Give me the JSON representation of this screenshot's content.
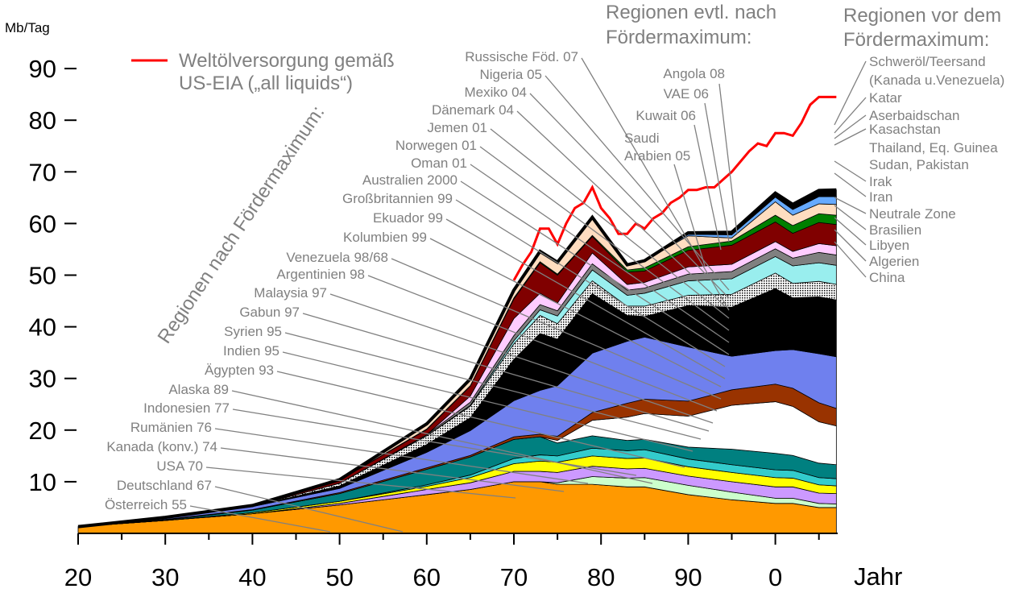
{
  "chart_data": {
    "type": "area",
    "title": "",
    "ylabel": "Mb/Tag",
    "xlabel": "Jahr",
    "ylim": [
      0,
      90
    ],
    "xlim": [
      1920,
      2007
    ],
    "y_ticks": [
      "10",
      "20",
      "30",
      "40",
      "50",
      "60",
      "70",
      "80",
      "90"
    ],
    "x_ticks": [
      "20",
      "30",
      "40",
      "50",
      "60",
      "70",
      "80",
      "90",
      "0"
    ],
    "grid": false,
    "legend": {
      "label_line1": "Weltölversorgung gemäß",
      "label_line2": "US-EIA („all liquids“)",
      "color": "#ff0000",
      "placement": "top-left"
    },
    "headers": {
      "left_rotated": "Regionen nach Fördermaximum:",
      "middle_line1": "Regionen evtl. nach",
      "middle_line2": "Fördermaximum:",
      "right_line1": "Regionen vor dem",
      "right_line2": "Fördermaximum:"
    },
    "years": [
      1920,
      1930,
      1940,
      1950,
      1960,
      1965,
      1970,
      1973,
      1975,
      1979,
      1983,
      1985,
      1990,
      1995,
      2000,
      2002,
      2005,
      2007
    ],
    "series": [
      {
        "name": "USA",
        "color": "#ff9900",
        "values": [
          1.3,
          2.5,
          3.8,
          5.5,
          7.5,
          8.5,
          10,
          10,
          9.5,
          9.5,
          9,
          9,
          7.5,
          6.5,
          5.8,
          5.8,
          5,
          5
        ]
      },
      {
        "name": "Alaska",
        "color": "#ccffcc",
        "values": [
          0,
          0,
          0,
          0,
          0,
          0,
          0,
          0,
          0.3,
          1.5,
          1.7,
          1.8,
          1.8,
          1.5,
          1,
          1,
          0.8,
          0.7
        ]
      },
      {
        "name": "Kanada/Indonesien/Rumänien",
        "color": "#cc99ff",
        "values": [
          0,
          0,
          0,
          0.3,
          1,
          1.3,
          2,
          2,
          2,
          2,
          1.8,
          1.8,
          1.8,
          2,
          2.2,
          2.2,
          2,
          2
        ]
      },
      {
        "name": "Ägypten/Indien/Syrien",
        "color": "#ffff00",
        "values": [
          0,
          0,
          0.2,
          0.4,
          0.6,
          1,
          1.5,
          2,
          2,
          2,
          2,
          2,
          1.8,
          1.8,
          1.8,
          1.7,
          1.6,
          1.5
        ]
      },
      {
        "name": "Gabun/Malaysia/Argentinien",
        "color": "#33cccc",
        "values": [
          0,
          0,
          0,
          0,
          0.3,
          0.5,
          1,
          1.2,
          1.2,
          1.5,
          1.5,
          1.6,
          1.5,
          1.5,
          1.5,
          1.5,
          1.4,
          1.4
        ]
      },
      {
        "name": "Venezuela",
        "color": "#008080",
        "values": [
          0,
          0.1,
          0.5,
          1.5,
          3,
          3.5,
          3.7,
          3.5,
          2.5,
          2.4,
          2,
          2,
          2.3,
          3,
          3.2,
          2.9,
          2.8,
          2.7
        ]
      },
      {
        "name": "Großbritannien/Norwegen/Australien",
        "color": "#ffffff",
        "values": [
          0,
          0,
          0,
          0,
          0,
          0,
          0,
          0,
          0.5,
          3,
          4.5,
          5,
          6,
          8.5,
          10,
          9.5,
          8,
          7.5
        ]
      },
      {
        "name": "Mexiko",
        "color": "#993300",
        "values": [
          0,
          0.1,
          0.1,
          0.2,
          0.3,
          0.3,
          0.5,
          0.5,
          0.8,
          1.5,
          2.7,
          2.8,
          2.9,
          3,
          3.4,
          3.5,
          3.7,
          3.4
        ]
      },
      {
        "name": "Russische Föd.",
        "color": "#6f80ee",
        "values": [
          0,
          0.3,
          0.6,
          0.8,
          3,
          4.8,
          7,
          8.5,
          9.8,
          11.5,
          12,
          12,
          10.5,
          6.5,
          6.5,
          7.5,
          9.5,
          10
        ]
      },
      {
        "name": "Saudi Arabien",
        "color": "#000000",
        "values": [
          0,
          0,
          0,
          0.5,
          1.5,
          2.5,
          8,
          11,
          9,
          11.5,
          5,
          4,
          8,
          9.5,
          12,
          10,
          11,
          11
        ]
      },
      {
        "name": "Kuwait/VAE",
        "color": "#aaaaaa",
        "values": [
          0,
          0,
          0,
          0.5,
          1.7,
          2.2,
          3,
          3.5,
          3,
          2.5,
          1.8,
          2,
          2,
          2.5,
          3,
          2.8,
          3,
          3
        ]
      },
      {
        "name": "China",
        "color": "#99eeee",
        "values": [
          0,
          0,
          0,
          0,
          0,
          0.2,
          0.6,
          1.1,
          1.5,
          2.1,
          2.1,
          2.5,
          2.8,
          3,
          3.2,
          3.4,
          3.6,
          3.7
        ]
      },
      {
        "name": "Algerien",
        "color": "#808080",
        "values": [
          0,
          0,
          0,
          0,
          0.2,
          0.6,
          1,
          1,
          1,
          1.2,
          1,
          1,
          1.3,
          1.4,
          1.5,
          1.5,
          2,
          2
        ]
      },
      {
        "name": "Libyen",
        "color": "#ffccff",
        "values": [
          0,
          0,
          0,
          0,
          0,
          1.2,
          3.3,
          2.2,
          1.5,
          2.1,
          1.1,
          1.1,
          1.4,
          1.4,
          1.4,
          1.3,
          1.7,
          1.8
        ]
      },
      {
        "name": "Iran",
        "color": "#800000",
        "values": [
          0,
          0.1,
          0.2,
          0.6,
          1,
          1.9,
          3.8,
          5.9,
          5.4,
          3.2,
          2.4,
          2.2,
          3.2,
          3.7,
          3.8,
          3.5,
          4.1,
          4.1
        ]
      },
      {
        "name": "Brasilien",
        "color": "#008000",
        "values": [
          0,
          0,
          0,
          0,
          0.1,
          0.1,
          0.2,
          0.2,
          0.2,
          0.2,
          0.4,
          0.6,
          0.7,
          0.8,
          1.3,
          1.5,
          1.7,
          1.8
        ]
      },
      {
        "name": "Irak",
        "color": "#ffddc0",
        "values": [
          0,
          0,
          0,
          0.1,
          1,
          1.3,
          1.5,
          2,
          2.3,
          3.5,
          1,
          1.4,
          2.1,
          0.6,
          2.6,
          2,
          1.9,
          2.1
        ]
      },
      {
        "name": "Kasachstan/Aserbaidschan/Katar",
        "color": "#66aaff",
        "values": [
          0,
          0,
          0,
          0,
          0,
          0,
          0,
          0,
          0,
          0,
          0,
          0,
          0.3,
          0.6,
          0.9,
          1.1,
          1.4,
          1.5
        ]
      },
      {
        "name": "Schweröl/Teersand",
        "color": "#000000",
        "values": [
          0,
          0,
          0,
          0,
          0,
          0,
          0,
          0,
          0,
          0,
          0,
          0,
          0.3,
          0.5,
          0.8,
          1,
          1.2,
          1.3
        ]
      }
    ],
    "world_supply": {
      "name": "Weltölversorgung",
      "years": [
        1970,
        1971,
        1972,
        1973,
        1974,
        1975,
        1976,
        1977,
        1978,
        1979,
        1980,
        1981,
        1982,
        1983,
        1984,
        1985,
        1986,
        1987,
        1988,
        1989,
        1990,
        1991,
        1992,
        1993,
        1994,
        1995,
        1996,
        1997,
        1998,
        1999,
        2000,
        2001,
        2002,
        2003,
        2004,
        2005,
        2006,
        2007
      ],
      "values": [
        49,
        52,
        54.5,
        59,
        59,
        56,
        60,
        63,
        64,
        67,
        63,
        61,
        58,
        58,
        60,
        59,
        61,
        62,
        64,
        65,
        66.5,
        66.5,
        67,
        67,
        68.5,
        70,
        72,
        74,
        75.5,
        75,
        77.5,
        77.5,
        77,
        79.5,
        83,
        84.5,
        84.5,
        84.5
      ]
    },
    "annotations_left": [
      "Österreich 55",
      "Deutschland 67",
      "USA 70",
      "Kanada (konv.) 74",
      "Rumänien 76",
      "Indonesien 77",
      "Alaska 89",
      "Ägypten 93",
      "Indien 95",
      "Syrien 95",
      "Gabun 97",
      "Malaysia 97",
      "Argentinien 98",
      "Venezuela  98/68",
      "Kolumbien 99",
      "Ekuador 99",
      "Großbritannien 99",
      "Australien 2000",
      "Oman 01",
      "Norwegen 01",
      "Jemen 01",
      "Dänemark 04",
      "Mexiko 04",
      "Nigeria 05",
      "Russische Föd. 07"
    ],
    "annotations_middle": [
      "Saudi",
      "Arabien 05",
      "Kuwait 06",
      "VAE 06",
      "Angola 08"
    ],
    "annotations_right": [
      "Schweröl/Teersand",
      "(Kanada u.Venezuela)",
      "Katar",
      "Aserbaidschan",
      "Kasachstan",
      "Thailand, Eq. Guinea",
      "Sudan, Pakistan",
      "Irak",
      "Iran",
      "Neutrale Zone",
      "Brasilien",
      "Libyen",
      "Algerien",
      "China"
    ]
  }
}
